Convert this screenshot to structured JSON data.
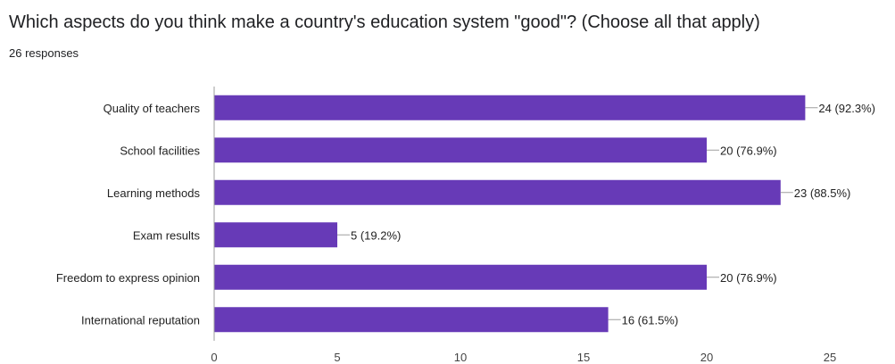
{
  "title": "Which aspects do you think make a country's education system \"good\"? (Choose all that apply)",
  "responses": "26 responses",
  "colors": {
    "bar": "#673ab7",
    "axis": "#9e9e9e",
    "leader": "#9e9e9e"
  },
  "chart_data": {
    "type": "bar",
    "orientation": "horizontal",
    "title": "Which aspects do you think make a country's education system \"good\"? (Choose all that apply)",
    "categories": [
      "Quality of teachers",
      "School facilities",
      "Learning methods",
      "Exam results",
      "Freedom to express opinion",
      "International reputation"
    ],
    "values": [
      24,
      20,
      23,
      5,
      20,
      16
    ],
    "data_labels": [
      "24 (92.3%)",
      "20 (76.9%)",
      "23 (88.5%)",
      "5 (19.2%)",
      "20 (76.9%)",
      "16 (61.5%)"
    ],
    "xlim": [
      0,
      25
    ],
    "xticks": [
      0,
      5,
      10,
      15,
      20,
      25
    ],
    "grid": false,
    "legend": "none"
  }
}
